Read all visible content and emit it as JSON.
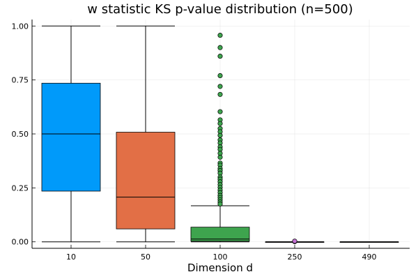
{
  "chart_data": {
    "type": "box",
    "title": "w statistic KS p-value distribution (n=500)",
    "xlabel": "Dimension d",
    "ylabel": "",
    "ylim": [
      -0.03,
      1.03
    ],
    "yticks": [
      "0.00",
      "0.25",
      "0.50",
      "0.75",
      "1.00"
    ],
    "ytick_values": [
      0.0,
      0.25,
      0.5,
      0.75,
      1.0
    ],
    "grid": true,
    "legend": "none",
    "categories": [
      "10",
      "50",
      "100",
      "250",
      "490"
    ],
    "boxes": [
      {
        "category": "10",
        "color": "#009AFA",
        "whisker_low": 0.0,
        "q1": 0.235,
        "median": 0.5,
        "q3": 0.735,
        "whisker_high": 1.0,
        "outliers": []
      },
      {
        "category": "50",
        "color": "#E26F46",
        "whisker_low": 0.0,
        "q1": 0.06,
        "median": 0.207,
        "q3": 0.508,
        "whisker_high": 1.0,
        "outliers": []
      },
      {
        "category": "100",
        "color": "#3EA44E",
        "whisker_low": 0.0,
        "q1": 0.003,
        "median": 0.013,
        "q3": 0.068,
        "whisker_high": 0.167,
        "outliers": [
          0.957,
          0.9,
          0.86,
          0.77,
          0.72,
          0.683,
          0.603,
          0.565,
          0.548,
          0.525,
          0.51,
          0.493,
          0.472,
          0.458,
          0.44,
          0.428,
          0.41,
          0.392,
          0.365,
          0.355,
          0.34,
          0.33,
          0.318,
          0.3,
          0.29,
          0.278,
          0.265,
          0.252,
          0.24,
          0.228,
          0.215,
          0.205,
          0.195,
          0.185,
          0.175
        ]
      },
      {
        "category": "250",
        "color": "#C371D2",
        "whisker_low": 0.0,
        "q1": 0.0,
        "median": 0.0,
        "q3": 0.0,
        "whisker_high": 0.0,
        "outliers": [
          0.001,
          0.002,
          0.003
        ]
      },
      {
        "category": "490",
        "color": "#AC8D18",
        "whisker_low": 0.0,
        "q1": 0.0,
        "median": 0.0,
        "q3": 0.0,
        "whisker_high": 0.0,
        "outliers": []
      }
    ]
  }
}
